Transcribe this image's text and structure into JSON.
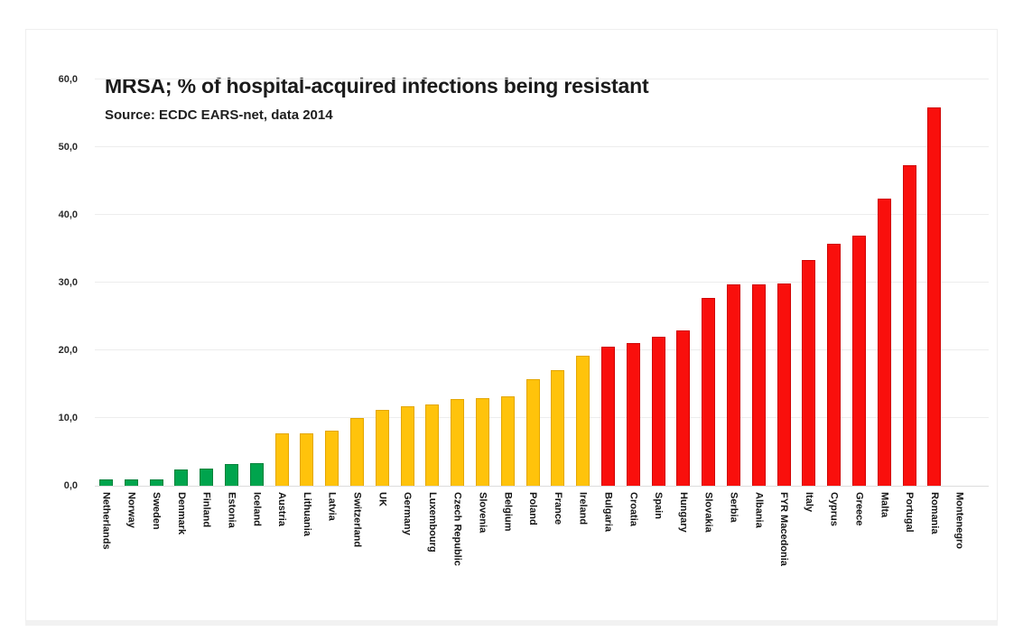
{
  "chart": {
    "title": "MRSA; % of hospital-acquired infections being resistant",
    "subtitle": "Source: ECDC EARS-net, data 2014"
  },
  "chart_data": {
    "type": "bar",
    "title": "MRSA; % of hospital-acquired infections being resistant",
    "subtitle": "Source: ECDC EARS-net, data 2014",
    "categories": [
      "Netherlands",
      "Norway",
      "Sweden",
      "Denmark",
      "Finland",
      "Estonia",
      "Iceland",
      "Austria",
      "Lithuania",
      "Latvia",
      "Switzerland",
      "UK",
      "Germany",
      "Luxembourg",
      "Czech Republic",
      "Slovenia",
      "Belgium",
      "Poland",
      "France",
      "Ireland",
      "Bulgaria",
      "Croatia",
      "Spain",
      "Hungary",
      "Slovakia",
      "Serbia",
      "Albania",
      "FYR Macedonia",
      "Italy",
      "Cyprus",
      "Greece",
      "Malta",
      "Portugal",
      "Romania",
      "Montenegro"
    ],
    "values": [
      0.9,
      1.0,
      1.0,
      2.4,
      2.6,
      3.2,
      3.3,
      7.7,
      7.7,
      8.1,
      10.0,
      11.2,
      11.8,
      12.0,
      12.8,
      12.9,
      13.2,
      15.7,
      17.1,
      19.2,
      20.6,
      21.1,
      22.0,
      23.0,
      27.8,
      29.7,
      29.8,
      29.9,
      33.4,
      35.8,
      37.0,
      42.4,
      47.3,
      55.9,
      null
    ],
    "bar_colors": [
      "green",
      "green",
      "green",
      "green",
      "green",
      "green",
      "green",
      "yellow",
      "yellow",
      "yellow",
      "yellow",
      "yellow",
      "yellow",
      "yellow",
      "yellow",
      "yellow",
      "yellow",
      "yellow",
      "yellow",
      "yellow",
      "red",
      "red",
      "red",
      "red",
      "red",
      "red",
      "red",
      "red",
      "red",
      "red",
      "red",
      "red",
      "red",
      "red",
      null
    ],
    "color_map": {
      "green": {
        "fill": "#00a44d",
        "border": "#00813a"
      },
      "yellow": {
        "fill": "#ffc30b",
        "border": "#e3a600"
      },
      "red": {
        "fill": "#f90f0c",
        "border": "#cf0202"
      }
    },
    "xlabel": "",
    "ylabel": "",
    "ylim": [
      0,
      60
    ],
    "ytick_labels": [
      "0,0",
      "10,0",
      "20,0",
      "30,0",
      "40,0",
      "50,0",
      "60,0"
    ],
    "ytick_values": [
      0,
      10,
      20,
      30,
      40,
      50,
      60
    ],
    "decimal_separator": ",",
    "grid": "horizontal",
    "legend_position": "none"
  }
}
